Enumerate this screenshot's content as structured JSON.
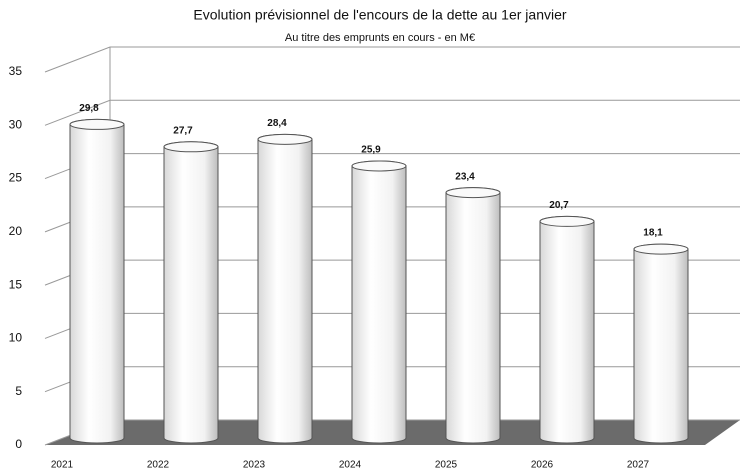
{
  "chart_data": {
    "type": "bar3d",
    "title": "Evolution prévisionnel de l'encours de la dette au 1er janvier",
    "subtitle": "Au titre des emprunts en cours - en M€",
    "categories": [
      "2021",
      "2022",
      "2023",
      "2024",
      "2025",
      "2026",
      "2027"
    ],
    "values": [
      29.8,
      27.7,
      28.4,
      25.9,
      23.4,
      20.7,
      18.1
    ],
    "value_labels": [
      "29,8",
      "27,7",
      "28,4",
      "25,9",
      "23,4",
      "20,7",
      "18,1"
    ],
    "color": "#ffffff",
    "ylim": [
      0,
      35
    ],
    "yticks": [
      0,
      5,
      10,
      15,
      20,
      25,
      30,
      35
    ],
    "grid": true
  }
}
